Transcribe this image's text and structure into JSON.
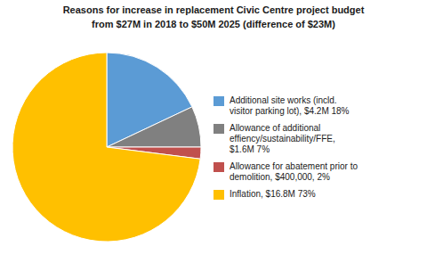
{
  "chart_data": {
    "type": "pie",
    "title": "Reasons for increase in replacement Civic Centre project budget",
    "subtitle": "from $27M in 2018 to $50M 2025 (difference of $23M)",
    "categories": [
      "Additional site works (incld.\nvisitor parking lot), $4.2M 18%",
      "Allowance of additional\neffiency/sustainability/FFE,\n$1.6M 7%",
      "Allowance for abatement prior to\ndemolition, $400,000, 2%",
      "Inflation, $16.8M 73%"
    ],
    "values": [
      18,
      7,
      2,
      73
    ],
    "colors": [
      "#5b9bd5",
      "#808080",
      "#c0504d",
      "#ffc000"
    ],
    "legend": "right"
  }
}
